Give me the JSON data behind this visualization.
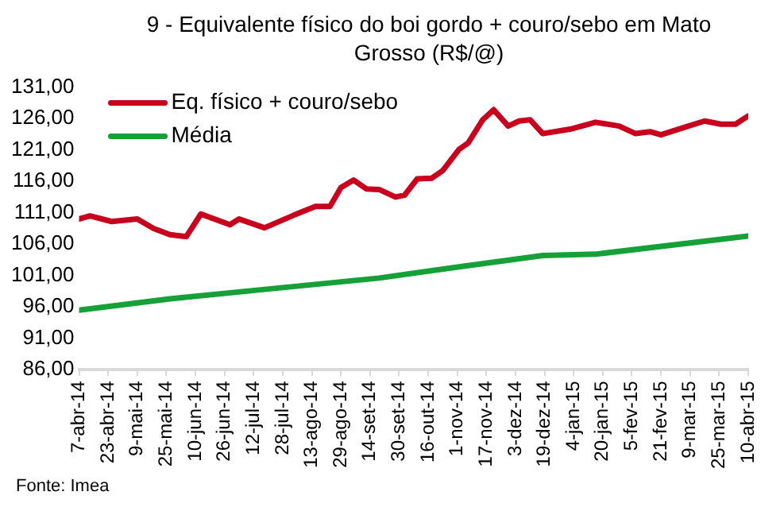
{
  "chart_data": {
    "type": "line",
    "title": "9 - Equivalente físico do boi gordo + couro/sebo em Mato Grosso (R$/@)",
    "annotations": [
      "Fonte: Imea"
    ],
    "series": [
      {
        "name": "Eq. físico + couro/sebo",
        "color": "#c8001e",
        "x": [
          "2014-04-07",
          "2014-04-13",
          "2014-04-25",
          "2014-05-09",
          "2014-05-18",
          "2014-05-27",
          "2014-06-05",
          "2014-06-13",
          "2014-06-29",
          "2014-07-04",
          "2014-07-18",
          "2014-08-03",
          "2014-08-15",
          "2014-08-23",
          "2014-08-29",
          "2014-09-05",
          "2014-09-12",
          "2014-09-19",
          "2014-09-28",
          "2014-10-03",
          "2014-10-10",
          "2014-10-18",
          "2014-10-24",
          "2014-11-02",
          "2014-11-07",
          "2014-11-15",
          "2014-11-21",
          "2014-11-29",
          "2014-12-05",
          "2014-12-11",
          "2014-12-18",
          "2015-01-02",
          "2015-01-16",
          "2015-01-29",
          "2015-02-07",
          "2015-02-15",
          "2015-02-21",
          "2015-03-06",
          "2015-03-17",
          "2015-03-26",
          "2015-04-03",
          "2015-04-10"
        ],
        "values": [
          110.0,
          110.5,
          109.6,
          110.0,
          108.5,
          107.5,
          107.2,
          110.8,
          109.1,
          110.0,
          108.6,
          110.6,
          112.0,
          112.0,
          115.0,
          116.2,
          114.8,
          114.7,
          113.5,
          113.8,
          116.4,
          116.5,
          117.7,
          121.1,
          122.1,
          125.8,
          127.4,
          124.8,
          125.6,
          125.8,
          123.6,
          124.3,
          125.4,
          124.8,
          123.6,
          123.9,
          123.4,
          124.6,
          125.6,
          125.1,
          125.1,
          126.4
        ]
      },
      {
        "name": "Média",
        "color": "#16a038",
        "x": [
          "2014-04-07",
          "2014-05-27",
          "2014-07-18",
          "2014-09-19",
          "2014-11-02",
          "2014-12-18",
          "2015-01-16",
          "2015-04-10"
        ],
        "values": [
          95.5,
          97.3,
          98.8,
          100.6,
          102.4,
          104.2,
          104.4,
          107.3
        ]
      }
    ],
    "xlim": [
      "2014-04-07",
      "2015-04-10"
    ],
    "xticks": [
      {
        "value": "2014-04-07",
        "label": "7-abr-14"
      },
      {
        "value": "2014-04-23",
        "label": "23-abr-14"
      },
      {
        "value": "2014-05-09",
        "label": "9-mai-14"
      },
      {
        "value": "2014-05-25",
        "label": "25-mai-14"
      },
      {
        "value": "2014-06-10",
        "label": "10-jun-14"
      },
      {
        "value": "2014-06-26",
        "label": "26-jun-14"
      },
      {
        "value": "2014-07-12",
        "label": "12-jul-14"
      },
      {
        "value": "2014-07-28",
        "label": "28-jul-14"
      },
      {
        "value": "2014-08-13",
        "label": "13-ago-14"
      },
      {
        "value": "2014-08-29",
        "label": "29-ago-14"
      },
      {
        "value": "2014-09-14",
        "label": "14-set-14"
      },
      {
        "value": "2014-09-30",
        "label": "30-set-14"
      },
      {
        "value": "2014-10-16",
        "label": "16-out-14"
      },
      {
        "value": "2014-11-01",
        "label": "1-nov-14"
      },
      {
        "value": "2014-11-17",
        "label": "17-nov-14"
      },
      {
        "value": "2014-12-03",
        "label": "3-dez-14"
      },
      {
        "value": "2014-12-19",
        "label": "19-dez-14"
      },
      {
        "value": "2015-01-04",
        "label": "4-jan-15"
      },
      {
        "value": "2015-01-20",
        "label": "20-jan-15"
      },
      {
        "value": "2015-02-05",
        "label": "5-fev-15"
      },
      {
        "value": "2015-02-21",
        "label": "21-fev-15"
      },
      {
        "value": "2015-03-09",
        "label": "9-mar-15"
      },
      {
        "value": "2015-03-25",
        "label": "25-mar-15"
      },
      {
        "value": "2015-04-10",
        "label": "10-abr-15"
      }
    ],
    "ylim": [
      86,
      131
    ],
    "yticks": [
      {
        "value": 86,
        "label": "86,00"
      },
      {
        "value": 91,
        "label": "91,00"
      },
      {
        "value": 96,
        "label": "96,00"
      },
      {
        "value": 101,
        "label": "101,00"
      },
      {
        "value": 106,
        "label": "106,00"
      },
      {
        "value": 111,
        "label": "111,00"
      },
      {
        "value": 116,
        "label": "116,00"
      },
      {
        "value": 121,
        "label": "121,00"
      },
      {
        "value": 126,
        "label": "126,00"
      },
      {
        "value": 131,
        "label": "131,00"
      }
    ],
    "grid": false,
    "legend": "top left",
    "marker": "none",
    "line_style": "solid"
  }
}
